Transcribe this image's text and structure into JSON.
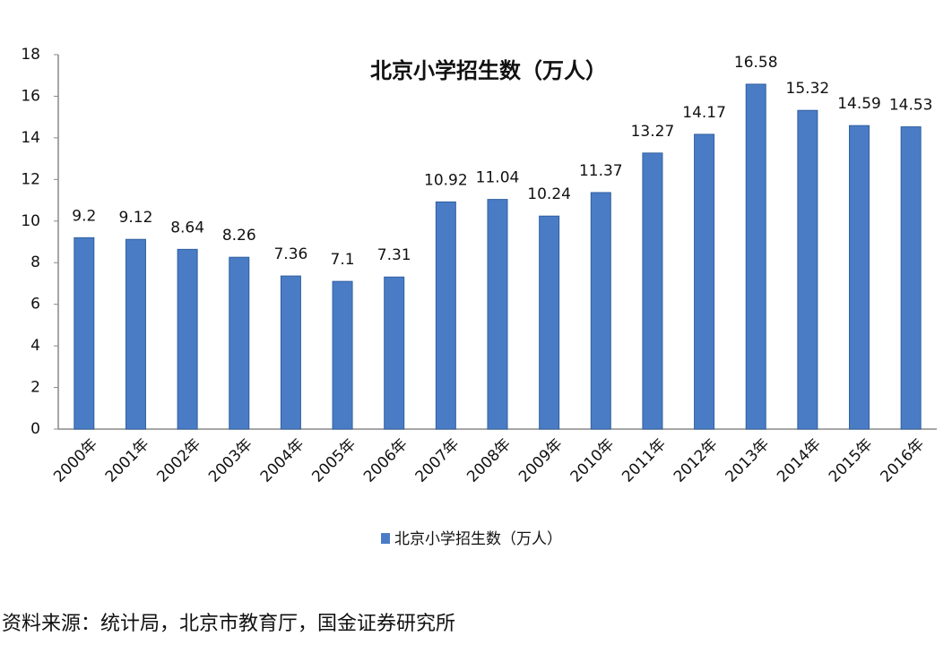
{
  "chart_data": {
    "type": "bar",
    "title": "北京小学招生数（万人）",
    "categories": [
      "2000年",
      "2001年",
      "2002年",
      "2003年",
      "2004年",
      "2005年",
      "2006年",
      "2007年",
      "2008年",
      "2009年",
      "2010年",
      "2011年",
      "2012年",
      "2013年",
      "2014年",
      "2015年",
      "2016年"
    ],
    "series": [
      {
        "name": "北京小学招生数（万人）",
        "color": "#4a7cc6",
        "values": [
          9.2,
          9.12,
          8.64,
          8.26,
          7.36,
          7.1,
          7.31,
          10.92,
          11.04,
          10.24,
          11.37,
          13.27,
          14.17,
          16.58,
          15.32,
          14.59,
          14.53
        ]
      }
    ],
    "ylim": [
      0,
      18
    ],
    "yticks": [
      0,
      2,
      4,
      6,
      8,
      10,
      12,
      14,
      16,
      18
    ],
    "grid": false,
    "legend": "bottom",
    "source": "资料来源：统计局，北京市教育厅，国金证券研究所"
  }
}
